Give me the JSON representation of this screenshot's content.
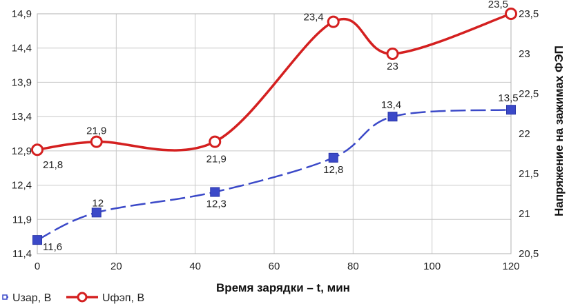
{
  "chart_data": {
    "type": "line",
    "title": "",
    "xlabel": "Время зарядки – t, мин",
    "ylabel": "",
    "y2label": "Напряжение на зажимах ФЭП",
    "xlim": [
      0,
      120
    ],
    "xticks": [
      "0",
      "20",
      "40",
      "60",
      "80",
      "100",
      "120"
    ],
    "ylim": [
      11.4,
      14.9
    ],
    "yticks": [
      "11,4",
      "11,9",
      "12,4",
      "12,9",
      "13,4",
      "13,9",
      "14,4",
      "14,9"
    ],
    "y2lim": [
      20.5,
      23.5
    ],
    "y2ticks": [
      "20,5",
      "21",
      "21,5",
      "22",
      "22,5",
      "23",
      "23,5"
    ],
    "grid": true,
    "legend": "bottom-left",
    "series": [
      {
        "name": "Uзар, В",
        "axis": "left",
        "color": "#3b49c8",
        "style": "dashed",
        "marker": "square",
        "x": [
          0,
          15,
          45,
          75,
          90,
          120
        ],
        "y": [
          11.6,
          12.0,
          12.3,
          12.8,
          13.4,
          13.5
        ],
        "labels": [
          "11,6",
          "12",
          "12,3",
          "12,8",
          "13,4",
          "13,5"
        ]
      },
      {
        "name": "Uфэп, В",
        "axis": "right",
        "color": "#d42020",
        "style": "solid",
        "marker": "circle",
        "x": [
          0,
          15,
          45,
          75,
          90,
          120
        ],
        "y": [
          21.8,
          21.9,
          21.9,
          23.4,
          23.0,
          23.5
        ],
        "labels": [
          "21,8",
          "21,9",
          "21,9",
          "23,4",
          "23",
          "23,5"
        ]
      }
    ]
  }
}
